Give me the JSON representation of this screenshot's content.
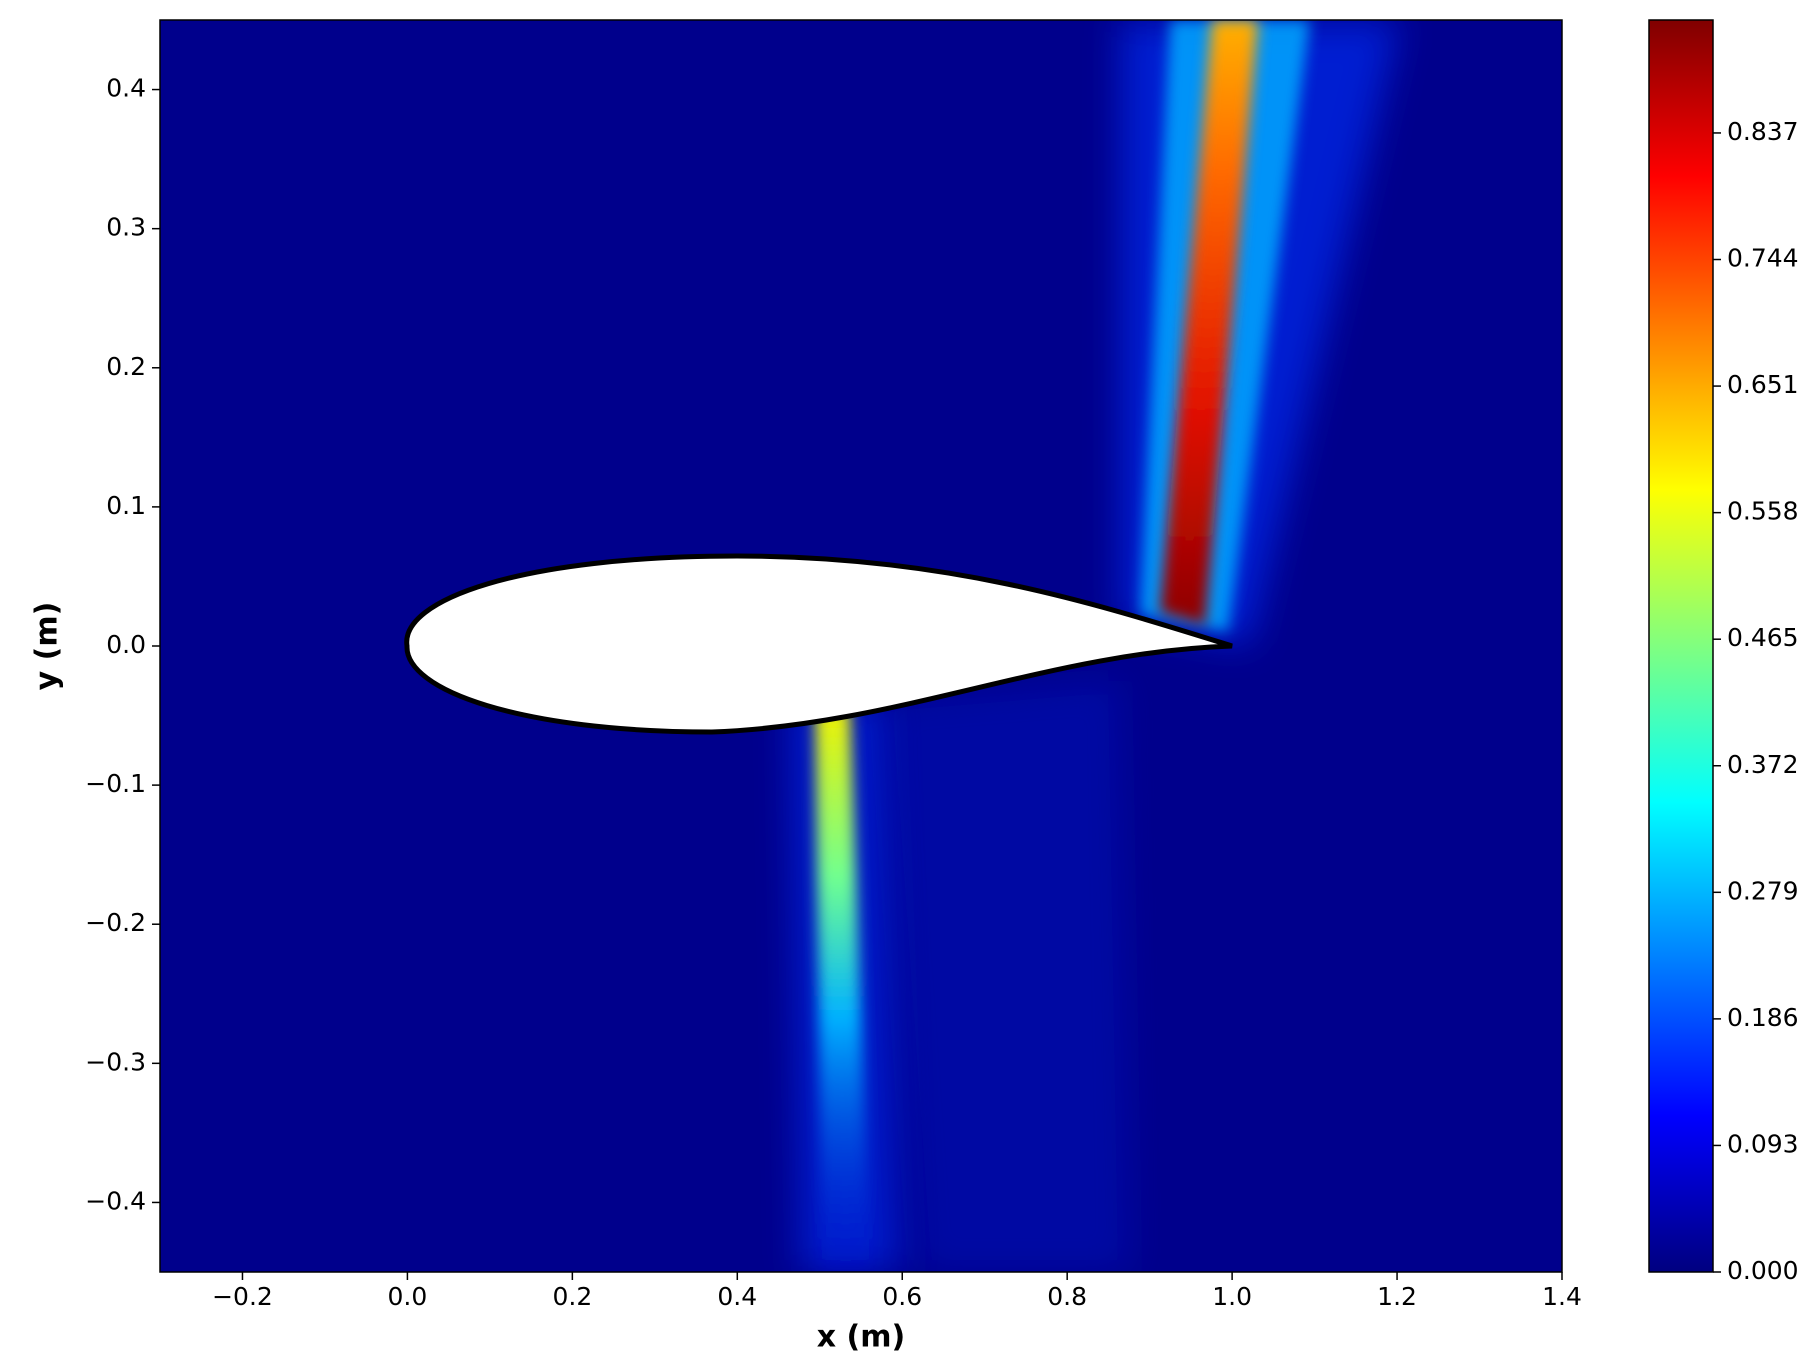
{
  "chart_data": {
    "type": "heatmap",
    "xlabel": "x (m)",
    "ylabel": "y (m)",
    "xlim": [
      -0.3,
      1.4
    ],
    "xticks": [
      {
        "value": -0.2,
        "label": "−0.2"
      },
      {
        "value": 0,
        "label": "0.0"
      },
      0.2,
      0.4,
      0.6,
      0.8,
      {
        "value": 1,
        "label": "1.0"
      },
      1.2,
      1.4
    ],
    "ylim": [
      -0.45,
      0.45
    ],
    "yticks": [
      {
        "value": -0.4,
        "label": "−0.4"
      },
      {
        "value": -0.3,
        "label": "−0.3"
      },
      {
        "value": -0.2,
        "label": "−0.2"
      },
      {
        "value": -0.1,
        "label": "−0.1"
      },
      {
        "value": 0,
        "label": "0.0"
      },
      0.1,
      0.2,
      0.3,
      0.4
    ],
    "colormap": "jet",
    "clim": [
      0,
      0.92
    ],
    "cticks": [
      {
        "value": 0,
        "label": "0.000"
      },
      0.093,
      0.186,
      0.279,
      0.372,
      0.465,
      0.558,
      0.651,
      0.744,
      0.837
    ]
  }
}
